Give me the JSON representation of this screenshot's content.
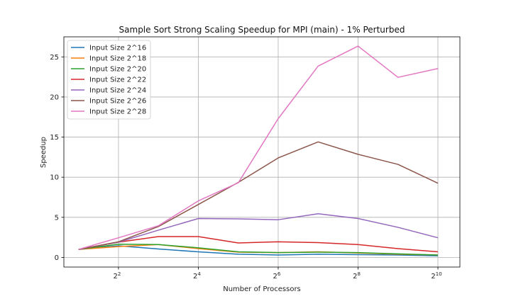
{
  "chart_data": {
    "type": "line",
    "title": "Sample Sort Strong Scaling Speedup for MPI (main) - 1% Perturbed",
    "xlabel": "Number of Processors",
    "ylabel": "Speedup",
    "x_scale": "log2",
    "x": [
      2,
      4,
      8,
      16,
      32,
      64,
      128,
      256,
      512,
      1024
    ],
    "xlim": [
      1.55,
      1500
    ],
    "ylim": [
      -1.2,
      27.5
    ],
    "xticks": [
      4,
      16,
      64,
      256,
      1024
    ],
    "xtick_labels": [
      {
        "base": "2",
        "exp": "2"
      },
      {
        "base": "2",
        "exp": "4"
      },
      {
        "base": "2",
        "exp": "6"
      },
      {
        "base": "2",
        "exp": "8"
      },
      {
        "base": "2",
        "exp": "10"
      }
    ],
    "yticks": [
      0,
      5,
      10,
      15,
      20,
      25
    ],
    "ytick_labels": [
      "0",
      "5",
      "10",
      "15",
      "20",
      "25"
    ],
    "grid": true,
    "legend_position": "top-left",
    "series": [
      {
        "name": "Input Size 2^16",
        "color": "#1f77b4",
        "values": [
          1.0,
          1.45,
          1.05,
          0.7,
          0.4,
          0.3,
          0.4,
          0.35,
          0.3,
          0.2
        ]
      },
      {
        "name": "Input Size 2^18",
        "color": "#ff7f0e",
        "values": [
          1.0,
          1.35,
          1.6,
          1.1,
          0.65,
          0.6,
          0.7,
          0.55,
          0.4,
          0.3
        ]
      },
      {
        "name": "Input Size 2^20",
        "color": "#2ca02c",
        "values": [
          1.0,
          1.65,
          1.6,
          1.2,
          0.7,
          0.6,
          0.65,
          0.6,
          0.45,
          0.3
        ]
      },
      {
        "name": "Input Size 2^22",
        "color": "#d62728",
        "values": [
          1.0,
          1.9,
          2.6,
          2.6,
          1.8,
          1.95,
          1.85,
          1.6,
          1.1,
          0.7
        ]
      },
      {
        "name": "Input Size 2^24",
        "color": "#9467bd",
        "values": [
          1.0,
          1.9,
          3.4,
          4.85,
          4.8,
          4.7,
          5.45,
          4.85,
          3.75,
          2.45
        ]
      },
      {
        "name": "Input Size 2^26",
        "color": "#8c564b",
        "values": [
          1.0,
          1.95,
          3.85,
          6.6,
          9.35,
          12.4,
          14.4,
          12.85,
          11.6,
          9.25
        ]
      },
      {
        "name": "Input Size 2^28",
        "color": "#e377c2",
        "values": [
          1.0,
          2.45,
          3.95,
          7.05,
          9.3,
          17.3,
          23.85,
          26.35,
          22.45,
          23.55
        ]
      }
    ]
  }
}
